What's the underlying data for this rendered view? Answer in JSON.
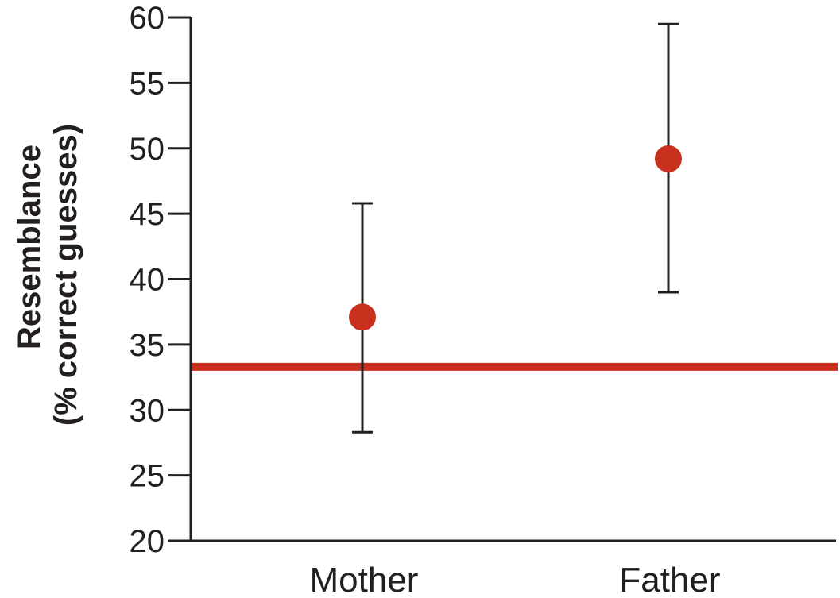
{
  "chart_data": {
    "type": "scatter",
    "title": "",
    "xlabel": "",
    "ylabel_lines": [
      "Resemblance",
      "(% correct guesses)"
    ],
    "categories": [
      "Mother",
      "Father"
    ],
    "series": [
      {
        "values": [
          37.1,
          49.2
        ],
        "error_low": [
          28.3,
          39.0
        ],
        "error_high": [
          45.8,
          59.5
        ]
      }
    ],
    "reference_line": 33.3,
    "ylim": [
      20,
      60
    ],
    "yticks": [
      20,
      25,
      30,
      35,
      40,
      45,
      50,
      55,
      60
    ],
    "grid": false,
    "legend": "none",
    "colors": {
      "marker": "#c8311e",
      "reference_line": "#c8311e",
      "axis": "#231f20",
      "error_bar": "#231f20"
    }
  }
}
